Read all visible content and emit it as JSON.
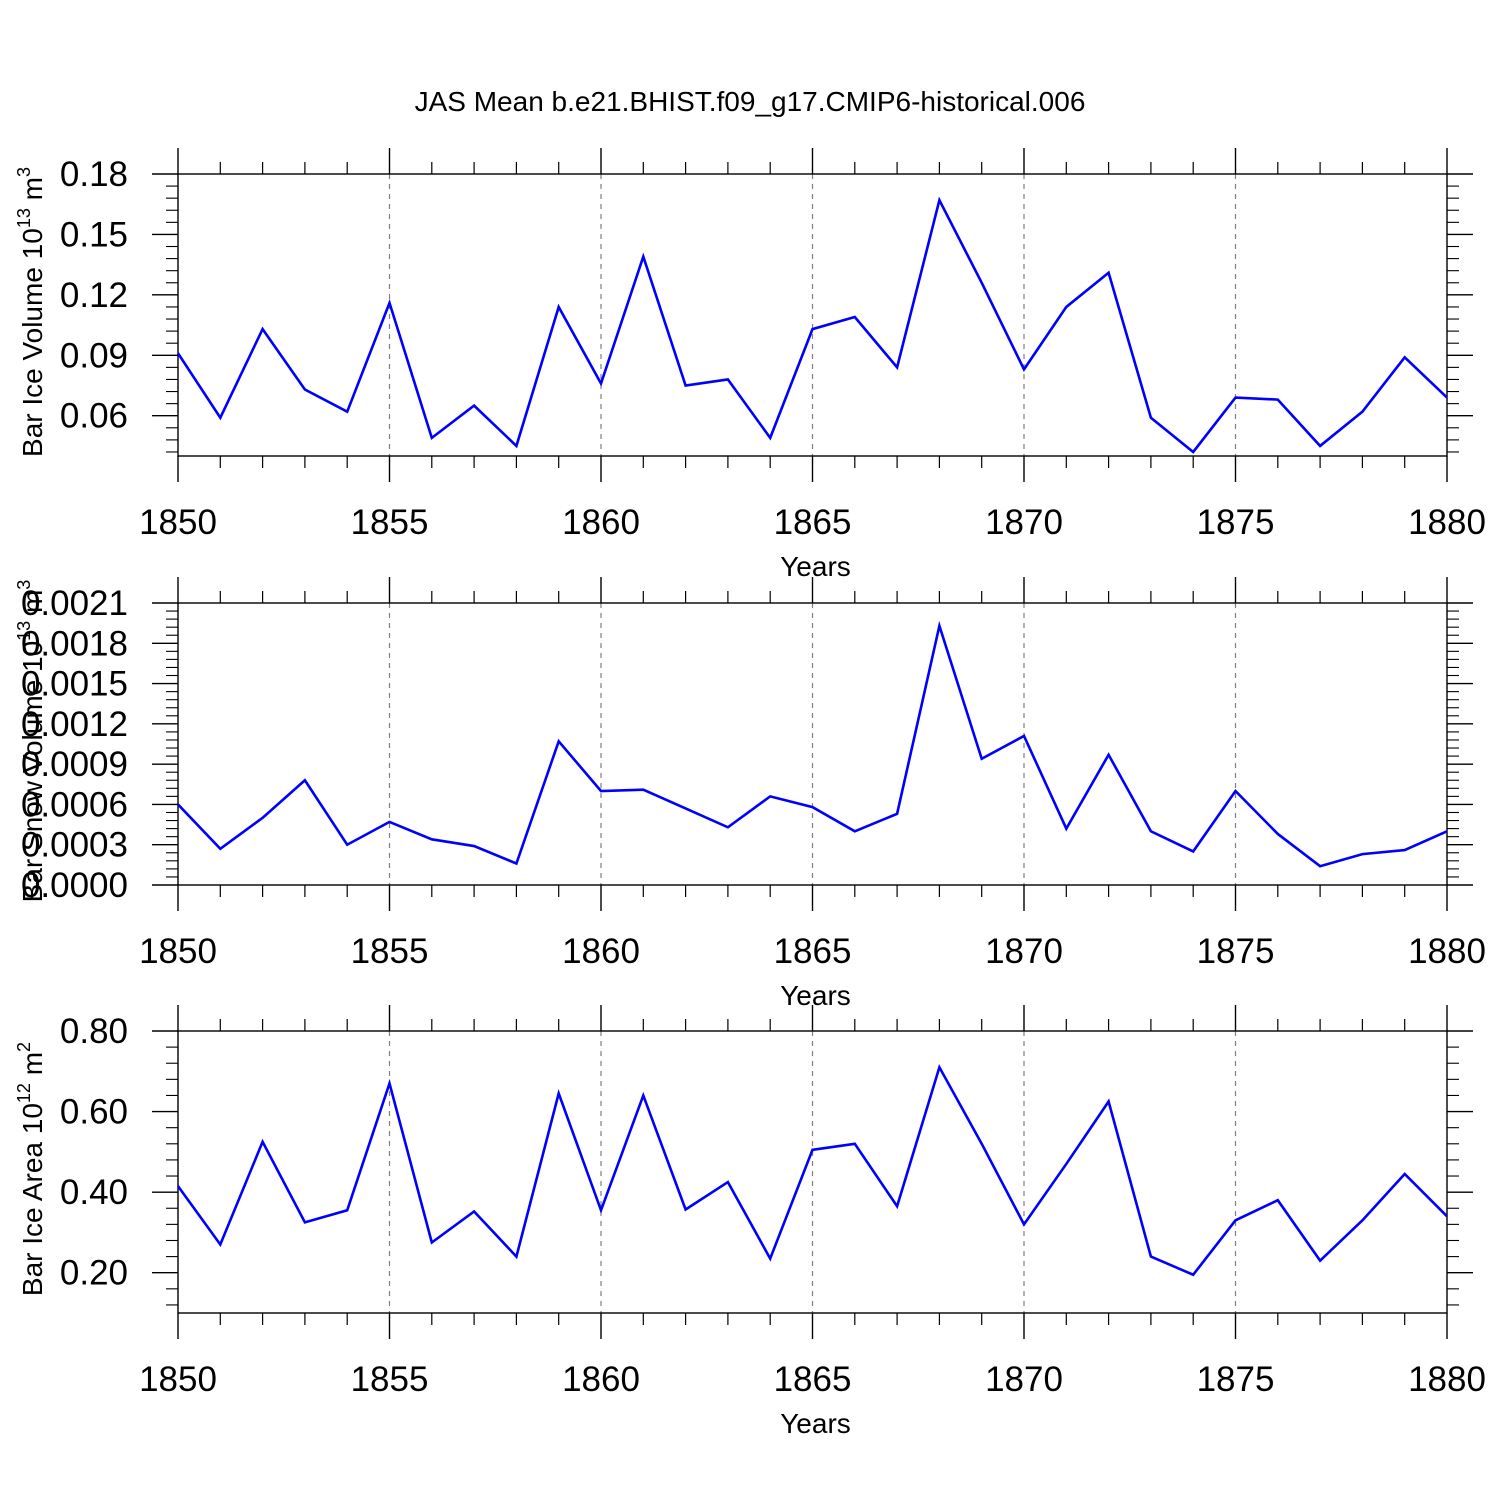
{
  "figure_title": "JAS Mean b.e21.BHIST.f09_g17.CMIP6-historical.006",
  "colors": {
    "line": "#0000ff",
    "axis": "#000000",
    "grid": "#808080"
  },
  "chart_data": [
    {
      "type": "line",
      "title": "JAS Mean b.e21.BHIST.f09_g17.CMIP6-historical.006",
      "xlabel": "Years",
      "ylabel_parts": [
        "Bar Ice Volume 10",
        "13",
        " m",
        "3"
      ],
      "xlim": [
        1850,
        1880
      ],
      "ylim": [
        0.04,
        0.18
      ],
      "xticks": [
        1850,
        1855,
        1860,
        1865,
        1870,
        1875,
        1880
      ],
      "xtick_labels": [
        "1850",
        "1855",
        "1860",
        "1865",
        "1870",
        "1875",
        "1880"
      ],
      "yticks": [
        0.06,
        0.09,
        0.12,
        0.15,
        0.18
      ],
      "ytick_labels": [
        "0.06",
        "0.09",
        "0.12",
        "0.15",
        "0.18"
      ],
      "grid_x": true,
      "x": [
        1850,
        1851,
        1852,
        1853,
        1854,
        1855,
        1856,
        1857,
        1858,
        1859,
        1860,
        1861,
        1862,
        1863,
        1864,
        1865,
        1866,
        1867,
        1868,
        1869,
        1870,
        1871,
        1872,
        1873,
        1874,
        1875,
        1876,
        1877,
        1878,
        1879,
        1880
      ],
      "series": [
        {
          "name": "Bar Ice Volume",
          "values": [
            0.091,
            0.059,
            0.103,
            0.073,
            0.062,
            0.116,
            0.049,
            0.065,
            0.045,
            0.114,
            0.076,
            0.139,
            0.075,
            0.078,
            0.049,
            0.103,
            0.109,
            0.084,
            0.167,
            0.126,
            0.083,
            0.114,
            0.131,
            0.059,
            0.042,
            0.069,
            0.068,
            0.045,
            0.062,
            0.089,
            0.069
          ]
        }
      ]
    },
    {
      "type": "line",
      "title": "",
      "xlabel": "Years",
      "ylabel_parts": [
        "Bar Snow Volume 10",
        "13",
        " m",
        "3"
      ],
      "xlim": [
        1850,
        1880
      ],
      "ylim": [
        0.0,
        0.0021
      ],
      "xticks": [
        1850,
        1855,
        1860,
        1865,
        1870,
        1875,
        1880
      ],
      "xtick_labels": [
        "1850",
        "1855",
        "1860",
        "1865",
        "1870",
        "1875",
        "1880"
      ],
      "yticks": [
        0.0,
        0.0003,
        0.0006,
        0.0009,
        0.0012,
        0.0015,
        0.0018,
        0.0021
      ],
      "ytick_labels": [
        "0.0000",
        "0.0003",
        "0.0006",
        "0.0009",
        "0.0012",
        "0.0015",
        "0.0018",
        "0.0021"
      ],
      "grid_x": true,
      "x": [
        1850,
        1851,
        1852,
        1853,
        1854,
        1855,
        1856,
        1857,
        1858,
        1859,
        1860,
        1861,
        1862,
        1863,
        1864,
        1865,
        1866,
        1867,
        1868,
        1869,
        1870,
        1871,
        1872,
        1873,
        1874,
        1875,
        1876,
        1877,
        1878,
        1879,
        1880
      ],
      "series": [
        {
          "name": "Bar Snow Volume",
          "values": [
            0.0006,
            0.00027,
            0.0005,
            0.00078,
            0.0003,
            0.00047,
            0.00034,
            0.00029,
            0.00016,
            0.00107,
            0.0007,
            0.00071,
            0.00057,
            0.00043,
            0.00066,
            0.00058,
            0.0004,
            0.00053,
            0.00193,
            0.00094,
            0.00111,
            0.00042,
            0.00097,
            0.0004,
            0.00025,
            0.0007,
            0.00038,
            0.00014,
            0.00023,
            0.00026,
            0.0004
          ]
        }
      ]
    },
    {
      "type": "line",
      "title": "",
      "xlabel": "Years",
      "ylabel_parts": [
        "Bar Ice Area 10",
        "12",
        " m",
        "2"
      ],
      "xlim": [
        1850,
        1880
      ],
      "ylim": [
        0.1,
        0.8
      ],
      "xticks": [
        1850,
        1855,
        1860,
        1865,
        1870,
        1875,
        1880
      ],
      "xtick_labels": [
        "1850",
        "1855",
        "1860",
        "1865",
        "1870",
        "1875",
        "1880"
      ],
      "yticks": [
        0.2,
        0.4,
        0.6,
        0.8
      ],
      "ytick_labels": [
        "0.20",
        "0.40",
        "0.60",
        "0.80"
      ],
      "grid_x": true,
      "x": [
        1850,
        1851,
        1852,
        1853,
        1854,
        1855,
        1856,
        1857,
        1858,
        1859,
        1860,
        1861,
        1862,
        1863,
        1864,
        1865,
        1866,
        1867,
        1868,
        1869,
        1870,
        1871,
        1872,
        1873,
        1874,
        1875,
        1876,
        1877,
        1878,
        1879,
        1880
      ],
      "series": [
        {
          "name": "Bar Ice Area",
          "values": [
            0.415,
            0.27,
            0.525,
            0.325,
            0.355,
            0.67,
            0.275,
            0.352,
            0.24,
            0.645,
            0.355,
            0.64,
            0.357,
            0.425,
            0.235,
            0.505,
            0.52,
            0.365,
            0.71,
            0.52,
            0.32,
            0.47,
            0.625,
            0.24,
            0.195,
            0.33,
            0.38,
            0.23,
            0.33,
            0.445,
            0.34
          ]
        }
      ]
    }
  ]
}
